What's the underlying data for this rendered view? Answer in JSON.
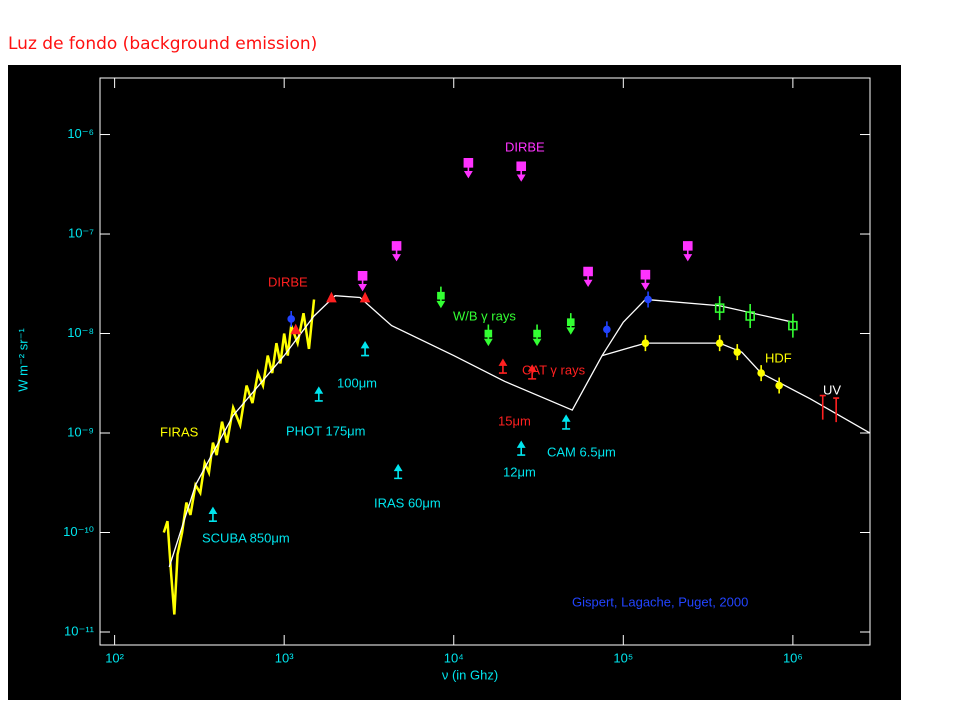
{
  "header": {
    "title": "Luz de fondo (background emission)"
  },
  "chart_data": {
    "type": "line",
    "log_x": true,
    "log_y": true,
    "xlabel": "ν (in Ghz)",
    "ylabel": "W m⁻² sr⁻¹",
    "xlim": [
      82,
      2850000
    ],
    "ylim": [
      7.4e-12,
      3.7e-06
    ],
    "xticks": [
      {
        "value": 100,
        "label": "10²"
      },
      {
        "value": 1000,
        "label": "10³"
      },
      {
        "value": 10000,
        "label": "10⁴"
      },
      {
        "value": 100000,
        "label": "10⁵"
      },
      {
        "value": 1000000,
        "label": "10⁶"
      }
    ],
    "yticks": [
      {
        "value": 1e-11,
        "label": "10⁻¹¹"
      },
      {
        "value": 1e-10,
        "label": "10⁻¹⁰"
      },
      {
        "value": 1e-09,
        "label": "10⁻⁹"
      },
      {
        "value": 1e-08,
        "label": "10⁻⁸"
      },
      {
        "value": 1e-07,
        "label": "10⁻⁷"
      },
      {
        "value": 1e-06,
        "label": "10⁻⁶"
      }
    ],
    "series": [
      {
        "mode": "line",
        "color": "#ffff00",
        "x": [
          195,
          205,
          215,
          225,
          235,
          250,
          265,
          280,
          300,
          320,
          340,
          360,
          380,
          400,
          430,
          460,
          500,
          550,
          600,
          650,
          700,
          750,
          800,
          850,
          900,
          950,
          1000,
          1050,
          1100,
          1200,
          1300,
          1400,
          1500
        ],
        "values": [
          1e-10,
          1.3e-10,
          4e-11,
          1.5e-11,
          6e-11,
          1e-10,
          2e-10,
          1.5e-10,
          3e-10,
          2.5e-10,
          5e-10,
          4e-10,
          8e-10,
          6e-10,
          1.3e-09,
          8e-10,
          1.8e-09,
          1.2e-09,
          3e-09,
          2e-09,
          4e-09,
          3e-09,
          6e-09,
          4e-09,
          8e-09,
          5e-09,
          1e-08,
          6e-09,
          1.2e-08,
          8e-09,
          1.6e-08,
          7e-09,
          2.2e-08
        ]
      },
      {
        "mode": "line",
        "color": "#ffffff",
        "x": [
          210,
          300,
          500,
          1000,
          1500,
          2000,
          2800,
          4300,
          10000,
          20000,
          50000,
          75000,
          100000,
          135000
        ],
        "values": [
          4.5e-11,
          3e-10,
          1.5e-09,
          6e-09,
          1.5e-08,
          2.4e-08,
          2.3e-08,
          1.2e-08,
          6e-09,
          3.3e-09,
          1.7e-09,
          6e-09,
          1.3e-08,
          2.2e-08
        ]
      },
      {
        "mode": "line",
        "color": "#ffffff",
        "x": [
          135000,
          370000,
          1000000
        ],
        "values": [
          2.2e-08,
          1.9e-08,
          1.3e-08
        ]
      },
      {
        "mode": "line",
        "color": "#ffffff",
        "x": [
          75000,
          135000,
          370000,
          500000,
          650000,
          1270000,
          2850000
        ],
        "values": [
          6e-09,
          8e-09,
          8e-09,
          6.5e-09,
          4e-09,
          2.2e-09,
          1e-09
        ]
      },
      {
        "mode": "square-down",
        "color": "#ff33ff",
        "x": [
          12200,
          25000,
          4600,
          2900,
          62000,
          135000,
          240000
        ],
        "values": [
          5.2e-07,
          4.8e-07,
          7.6e-08,
          3.8e-08,
          4.2e-08,
          3.9e-08,
          7.6e-08
        ]
      },
      {
        "mode": "arrow-down",
        "color": "#33ff33",
        "x": [
          8400,
          16000,
          31000,
          49000
        ],
        "values": [
          2.4e-08,
          1e-08,
          1e-08,
          1.3e-08
        ]
      },
      {
        "mode": "square",
        "color": "#33ff33",
        "x": [
          370000,
          560000,
          1000000
        ],
        "values": [
          1.8e-08,
          1.5e-08,
          1.2e-08
        ]
      },
      {
        "mode": "arrow-up",
        "color": "#00e5ee",
        "x": [
          3000,
          1600,
          4700,
          380,
          25000,
          46000
        ],
        "values": [
          6e-09,
          2.1e-09,
          3.5e-10,
          1.3e-10,
          6e-10,
          1.1e-09
        ]
      },
      {
        "mode": "triangle",
        "color": "#ff2020",
        "x": [
          1170,
          1900,
          3000
        ],
        "values": [
          1.1e-08,
          2.3e-08,
          2.3e-08
        ]
      },
      {
        "mode": "arrow-up",
        "color": "#ff2020",
        "x": [
          19500,
          29000
        ],
        "values": [
          4e-09,
          3.5e-09
        ]
      },
      {
        "mode": "bar",
        "color": "#ff2020",
        "x": [
          1500000,
          1800000
        ],
        "values": [
          1.8e-09,
          1.7e-09
        ]
      },
      {
        "mode": "dot",
        "color": "#ffff00",
        "x": [
          135000,
          370000,
          470000,
          650000,
          830000
        ],
        "values": [
          8e-09,
          8e-09,
          6.5e-09,
          4e-09,
          3e-09
        ]
      },
      {
        "mode": "dot",
        "color": "#2244ff",
        "x": [
          1100,
          80000,
          140000
        ],
        "values": [
          1.4e-08,
          1.1e-08,
          2.2e-08
        ]
      }
    ],
    "annotations": [
      {
        "text": "DIRBE",
        "color": "#ff33ff"
      },
      {
        "text": "DIRBE",
        "color": "#ff2020"
      },
      {
        "text": "W/B γ rays",
        "color": "#33ff33"
      },
      {
        "text": "CAT γ rays",
        "color": "#ff2020"
      },
      {
        "text": "HDF",
        "color": "#ffff00"
      },
      {
        "text": "UV",
        "color": "#ffffff"
      },
      {
        "text": "FIRAS",
        "color": "#ffff00"
      },
      {
        "text": "PHOT 175μm",
        "color": "#00e5ee"
      },
      {
        "text": "100μm",
        "color": "#00e5ee"
      },
      {
        "text": "IRAS 60μm",
        "color": "#00e5ee"
      },
      {
        "text": "SCUBA 850μm",
        "color": "#00e5ee"
      },
      {
        "text": "15μm",
        "color": "#ff2020"
      },
      {
        "text": "12μm",
        "color": "#00e5ee"
      },
      {
        "text": "CAM 6.5μm",
        "color": "#00e5ee"
      },
      {
        "text": "Gispert, Lagache, Puget, 2000",
        "color": "#2244ff"
      }
    ]
  }
}
